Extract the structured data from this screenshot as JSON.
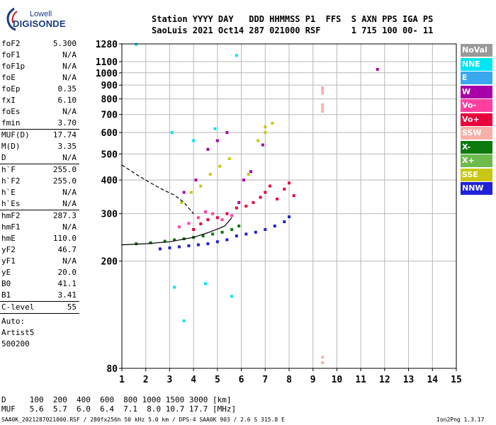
{
  "logo": {
    "line1": "Lowell",
    "line2": "DIGISONDE"
  },
  "header": {
    "row1": "Station YYYY DAY   DDD HHMMSS P1  FFS  S AXN PPS IGA PS",
    "row2": "SaoLuis 2021 Oct14 287 021000 RSF      1 715 100 00- 11"
  },
  "params": [
    {
      "name": "foF2",
      "value": "5.300",
      "sep": false
    },
    {
      "name": "foF1",
      "value": "N/A",
      "sep": false
    },
    {
      "name": "foF1p",
      "value": "N/A",
      "sep": false
    },
    {
      "name": "foE",
      "value": "N/A",
      "sep": false
    },
    {
      "name": "foEp",
      "value": "0.35",
      "sep": false
    },
    {
      "name": "fxI",
      "value": "6.10",
      "sep": false
    },
    {
      "name": "foEs",
      "value": "N/A",
      "sep": false
    },
    {
      "name": "fmin",
      "value": "3.70",
      "sep": true
    },
    {
      "name": "MUF(D)",
      "value": "17.74",
      "sep": false
    },
    {
      "name": "M(D)",
      "value": "3.35",
      "sep": false
    },
    {
      "name": "D",
      "value": "N/A",
      "sep": true
    },
    {
      "name": "h`F",
      "value": "255.0",
      "sep": false
    },
    {
      "name": "h`F2",
      "value": "255.0",
      "sep": false
    },
    {
      "name": "h`E",
      "value": "N/A",
      "sep": false
    },
    {
      "name": "h`Es",
      "value": "N/A",
      "sep": true
    },
    {
      "name": "hmF2",
      "value": "287.3",
      "sep": false
    },
    {
      "name": "hmF1",
      "value": "N/A",
      "sep": false
    },
    {
      "name": "hmE",
      "value": "110.0",
      "sep": false
    },
    {
      "name": "yF2",
      "value": "46.7",
      "sep": false
    },
    {
      "name": "yF1",
      "value": "N/A",
      "sep": false
    },
    {
      "name": "yE",
      "value": "20.0",
      "sep": false
    },
    {
      "name": "B0",
      "value": "41.1",
      "sep": false
    },
    {
      "name": "B1",
      "value": "3.41",
      "sep": true
    },
    {
      "name": "C-level",
      "value": "55",
      "sep": true
    }
  ],
  "extra": [
    "Auto:",
    "Artist5",
    "500200"
  ],
  "legend": [
    {
      "label": "NoVal",
      "color": "#9a9a9a"
    },
    {
      "label": "NNE",
      "color": "#00e5f0"
    },
    {
      "label": "E",
      "color": "#3aa8ee"
    },
    {
      "label": "W",
      "color": "#a800a8"
    },
    {
      "label": "Vo-",
      "color": "#ff3fa0"
    },
    {
      "label": "Vo+",
      "color": "#e8003c"
    },
    {
      "label": "SSW",
      "color": "#f7b0a8"
    },
    {
      "label": "X-",
      "color": "#0c7a0c"
    },
    {
      "label": "X+",
      "color": "#6cbc4c"
    },
    {
      "label": "SSE",
      "color": "#c8c814"
    },
    {
      "label": "NNW",
      "color": "#2020d8"
    }
  ],
  "bottom": {
    "d_row": "D     100  200  400  600  800 1000 1500 3000 [km]",
    "muf_row": "MUF   5.6  5.7  6.0  6.4  7.1  8.0 10.7 17.7 [MHz]"
  },
  "footer": {
    "left": "SAA0K_2021287021000.RSF / 280fx256h 50 kHz 5.0 km / DPS-4 SAA0K 903 / 2.6 S 315.8 E",
    "right": "Ion2Png 1.3.17"
  },
  "chart_data": {
    "type": "scatter",
    "title": "",
    "xlabel": "",
    "ylabel": "",
    "xlim": [
      1,
      15
    ],
    "ylim": [
      80,
      1280
    ],
    "y_scale": "log",
    "x_ticks": [
      1,
      2,
      3,
      4,
      5,
      6,
      7,
      8,
      9,
      10,
      11,
      12,
      13,
      14,
      15
    ],
    "y_ticks": [
      80,
      200,
      300,
      400,
      500,
      600,
      700,
      800,
      900,
      1000,
      1100,
      1280
    ],
    "grid": true,
    "legend": "right",
    "series": [
      {
        "color": "#0c7a0c",
        "points": [
          [
            1.6,
            232
          ],
          [
            2.2,
            234
          ],
          [
            2.8,
            237
          ],
          [
            3.2,
            240
          ],
          [
            3.6,
            242
          ],
          [
            4.0,
            245
          ],
          [
            4.4,
            248
          ],
          [
            4.8,
            252
          ],
          [
            5.2,
            256
          ],
          [
            5.6,
            262
          ],
          [
            5.9,
            270
          ]
        ]
      },
      {
        "color": "#2020d8",
        "points": [
          [
            2.6,
            222
          ],
          [
            3.0,
            224
          ],
          [
            3.4,
            226
          ],
          [
            3.8,
            228
          ],
          [
            4.2,
            230
          ],
          [
            4.6,
            232
          ],
          [
            5.0,
            236
          ],
          [
            5.4,
            240
          ],
          [
            5.8,
            248
          ],
          [
            6.2,
            252
          ],
          [
            6.6,
            256
          ],
          [
            7.0,
            262
          ],
          [
            7.4,
            270
          ],
          [
            7.8,
            280
          ],
          [
            8.0,
            292
          ]
        ]
      },
      {
        "color": "#e8003c",
        "points": [
          [
            4.0,
            262
          ],
          [
            4.3,
            275
          ],
          [
            4.6,
            285
          ],
          [
            5.0,
            290
          ],
          [
            5.4,
            300
          ],
          [
            5.8,
            315
          ],
          [
            6.2,
            320
          ],
          [
            6.5,
            330
          ],
          [
            6.8,
            345
          ],
          [
            7.0,
            360
          ],
          [
            7.2,
            380
          ],
          [
            7.5,
            340
          ],
          [
            7.8,
            370
          ],
          [
            8.0,
            390
          ],
          [
            8.2,
            350
          ]
        ]
      },
      {
        "color": "#ff3fa0",
        "points": [
          [
            3.4,
            268
          ],
          [
            3.8,
            276
          ],
          [
            4.2,
            290
          ],
          [
            4.5,
            305
          ],
          [
            4.8,
            300
          ],
          [
            5.2,
            285
          ],
          [
            5.6,
            295
          ]
        ]
      },
      {
        "color": "#c8c814",
        "points": [
          [
            3.5,
            330
          ],
          [
            3.9,
            360
          ],
          [
            4.3,
            380
          ],
          [
            4.7,
            420
          ],
          [
            5.1,
            450
          ],
          [
            5.5,
            480
          ],
          [
            6.3,
            420
          ],
          [
            6.7,
            560
          ],
          [
            7.0,
            600
          ],
          [
            7.3,
            650
          ],
          [
            7.0,
            630
          ]
        ]
      },
      {
        "color": "#a800a8",
        "points": [
          [
            3.6,
            360
          ],
          [
            4.1,
            400
          ],
          [
            4.6,
            520
          ],
          [
            5.0,
            560
          ],
          [
            5.4,
            600
          ],
          [
            5.9,
            330
          ],
          [
            6.1,
            400
          ],
          [
            6.4,
            430
          ],
          [
            6.9,
            540
          ],
          [
            11.7,
            1030
          ]
        ]
      },
      {
        "color": "#00e5f0",
        "points": [
          [
            1.6,
            1275
          ],
          [
            3.1,
            600
          ],
          [
            4.0,
            560
          ],
          [
            4.9,
            620
          ],
          [
            5.8,
            1160
          ],
          [
            3.2,
            160
          ],
          [
            3.6,
            120
          ],
          [
            4.5,
            165
          ],
          [
            5.6,
            148
          ]
        ]
      },
      {
        "color": "#f7b0a8",
        "points": [
          [
            9.4,
            880
          ],
          [
            9.4,
            860
          ],
          [
            9.4,
            840
          ],
          [
            9.4,
            760
          ],
          [
            9.4,
            740
          ],
          [
            9.4,
            720
          ],
          [
            9.4,
            88
          ],
          [
            9.4,
            84
          ]
        ]
      }
    ],
    "curves": [
      {
        "name": "O-trace fit",
        "style": "solid",
        "points": [
          [
            1,
            230
          ],
          [
            2,
            232
          ],
          [
            3,
            236
          ],
          [
            4,
            245
          ],
          [
            4.6,
            255
          ],
          [
            5.0,
            263
          ],
          [
            5.3,
            270
          ],
          [
            5.6,
            290
          ]
        ]
      },
      {
        "name": "profile",
        "style": "dashed",
        "points": [
          [
            1,
            455
          ],
          [
            1.6,
            420
          ],
          [
            2.2,
            390
          ],
          [
            2.8,
            365
          ],
          [
            3.2,
            352
          ],
          [
            3.6,
            330
          ],
          [
            4.0,
            300
          ]
        ]
      }
    ]
  }
}
